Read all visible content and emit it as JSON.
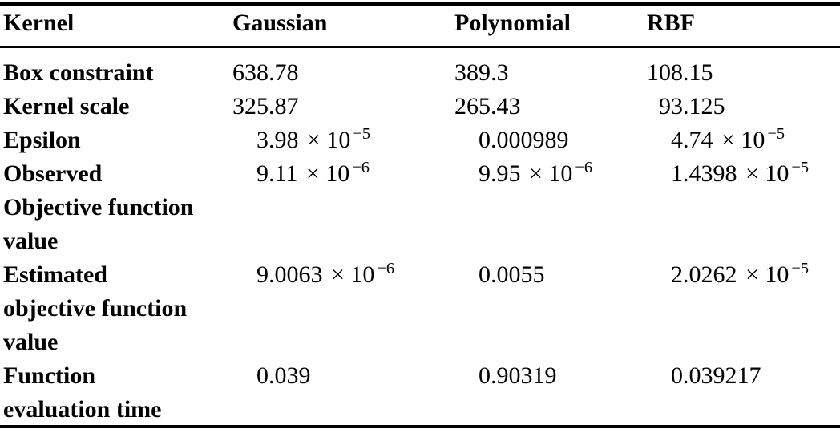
{
  "page": {
    "background_color": "#ffffff",
    "text_color": "#000000"
  },
  "notation": {
    "times_symbol": "×",
    "base": "10"
  },
  "chart_data": {
    "type": "table",
    "columns": [
      "Kernel",
      "Gaussian",
      "Polynomial",
      "RBF"
    ],
    "rows": [
      {
        "label": "Box constraint",
        "label_lines": [
          "Box constraint"
        ],
        "values": [
          {
            "text": "638.78",
            "int": "638",
            "rest": ".78",
            "exp": null
          },
          {
            "text": "389.3",
            "int": "389",
            "rest": ".3",
            "exp": null
          },
          {
            "text": "108.15",
            "int": "108",
            "rest": ".15",
            "exp": null
          }
        ]
      },
      {
        "label": "Kernel scale",
        "label_lines": [
          "Kernel scale"
        ],
        "values": [
          {
            "text": "325.87",
            "int": "325",
            "rest": ".87",
            "exp": null
          },
          {
            "text": "265.43",
            "int": "265",
            "rest": ".43",
            "exp": null
          },
          {
            "text": "93.125",
            "int": "93",
            "rest": ".125",
            "exp": null
          }
        ]
      },
      {
        "label": "Epsilon",
        "label_lines": [
          "Epsilon"
        ],
        "values": [
          {
            "text": "3.98 × 10^−5",
            "int": "3",
            "rest": ".98",
            "exp": "−5"
          },
          {
            "text": "0.000989",
            "int": "0",
            "rest": ".000989",
            "exp": null
          },
          {
            "text": "4.74 × 10^−5",
            "int": "4",
            "rest": ".74",
            "exp": "−5"
          }
        ]
      },
      {
        "label": "Observed Objective function value",
        "label_lines": [
          "Observed",
          "Objective function",
          "value"
        ],
        "values": [
          {
            "text": "9.11 × 10^−6",
            "int": "9",
            "rest": ".11",
            "exp": "−6"
          },
          {
            "text": "9.95 × 10^−6",
            "int": "9",
            "rest": ".95",
            "exp": "−6"
          },
          {
            "text": "1.4398 × 10^−5",
            "int": "1",
            "rest": ".4398",
            "exp": "−5"
          }
        ]
      },
      {
        "label": "Estimated objective function value",
        "label_lines": [
          "Estimated",
          "objective function",
          "value"
        ],
        "values": [
          {
            "text": "9.0063 × 10^−6",
            "int": "9",
            "rest": ".0063",
            "exp": "−6"
          },
          {
            "text": "0.0055",
            "int": "0",
            "rest": ".0055",
            "exp": null
          },
          {
            "text": "2.0262 × 10^−5",
            "int": "2",
            "rest": ".0262",
            "exp": "−5"
          }
        ]
      },
      {
        "label": "Function evaluation time",
        "label_lines": [
          "Function",
          "evaluation time"
        ],
        "values": [
          {
            "text": "0.039",
            "int": "0",
            "rest": ".039",
            "exp": null
          },
          {
            "text": "0.90319",
            "int": "0",
            "rest": ".90319",
            "exp": null
          },
          {
            "text": "0.039217",
            "int": "0",
            "rest": ".039217",
            "exp": null
          }
        ]
      }
    ]
  }
}
